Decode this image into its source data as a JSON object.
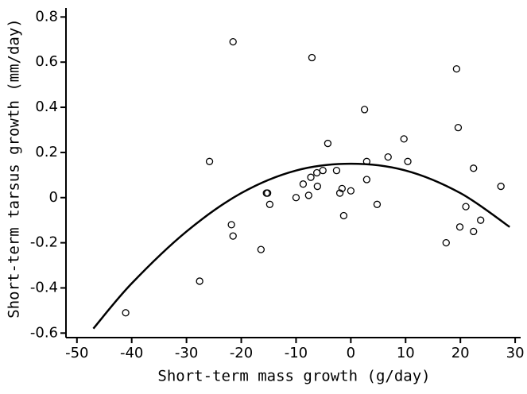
{
  "chart_data": {
    "type": "scatter",
    "x_label": "Short-term mass growth (g/day)",
    "y_label": "Short-term tarsus growth (mm/day)",
    "xlim": [
      -52,
      31
    ],
    "ylim": [
      -0.62,
      0.84
    ],
    "xticks": [
      -50,
      -40,
      -30,
      -20,
      -10,
      0,
      10,
      20,
      30
    ],
    "yticks": [
      0.8,
      0.6,
      0.4,
      0.2,
      0,
      -0.2,
      -0.4,
      -0.6
    ],
    "grid": false,
    "series": [
      {
        "type": "scatter",
        "color": "#000000",
        "x": [
          -21.5,
          -7.1,
          19.3,
          2.5,
          19.6,
          -4.2,
          9.7,
          -25.8,
          6.8,
          10.4,
          2.9,
          22.4,
          -5.1,
          -15.2,
          -15.4,
          -8.7,
          -7.3,
          -6.2,
          -2.6,
          2.9,
          -10.0,
          -7.7,
          -6.1,
          -2.0,
          -1.6,
          0.0,
          -14.8,
          -1.3,
          4.8,
          -21.8,
          -21.5,
          -16.4,
          21.0,
          23.7,
          19.9,
          22.4,
          17.4,
          27.4,
          -27.6,
          -41.1
        ],
        "values": [
          0.69,
          0.62,
          0.57,
          0.39,
          0.31,
          0.24,
          0.26,
          0.16,
          0.18,
          0.16,
          0.16,
          0.13,
          0.12,
          0.02,
          0.02,
          0.06,
          0.09,
          0.11,
          0.12,
          0.08,
          0.0,
          0.01,
          0.05,
          0.02,
          0.04,
          0.03,
          -0.03,
          -0.08,
          -0.03,
          -0.12,
          -0.17,
          -0.23,
          -0.04,
          -0.1,
          -0.13,
          -0.15,
          -0.2,
          0.05,
          -0.37,
          -0.51
        ]
      },
      {
        "type": "line",
        "color": "#000000",
        "x": [
          -47,
          -40,
          -30,
          -20,
          -10,
          0,
          10,
          20,
          29
        ],
        "values": [
          -0.58,
          -0.38,
          -0.15,
          0.02,
          0.12,
          0.15,
          0.12,
          0.02,
          -0.13
        ]
      }
    ]
  }
}
